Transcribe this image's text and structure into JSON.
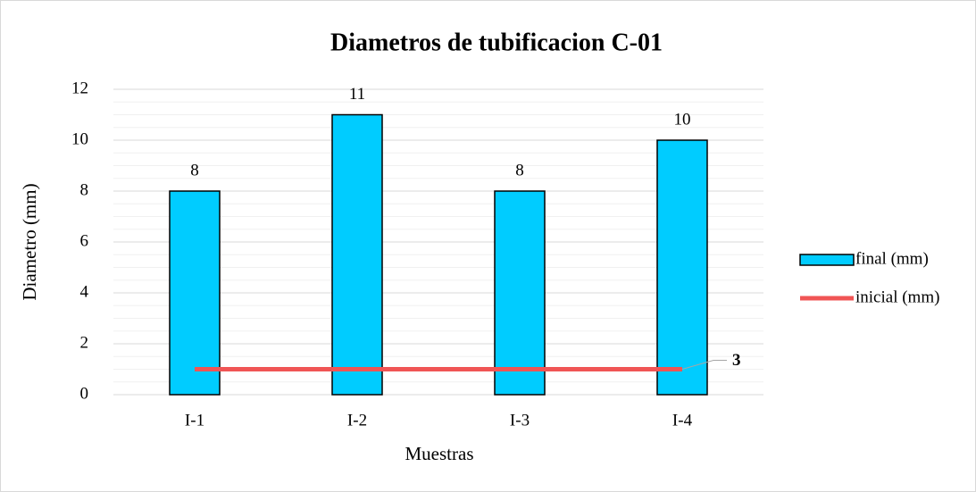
{
  "chart_data": {
    "type": "bar",
    "title": "Diametros de tubificacion C-01",
    "categories": [
      "I-1",
      "I-2",
      "I-3",
      "I-4"
    ],
    "series": [
      {
        "name": "final (mm)",
        "type": "bar",
        "color": "#00ccff",
        "values": [
          8,
          11,
          8,
          10
        ]
      },
      {
        "name": "inicial (mm)",
        "type": "line",
        "color": "#f05555",
        "values": [
          1,
          1,
          1,
          1
        ]
      }
    ],
    "annotation": "3",
    "x_label": "Muestras",
    "y_label": "Diametro (mm)",
    "ylim": [
      0,
      12
    ],
    "yticks": [
      0,
      2,
      4,
      6,
      8,
      10,
      12
    ],
    "grid": true,
    "minor_grid": true,
    "legend": "right"
  }
}
